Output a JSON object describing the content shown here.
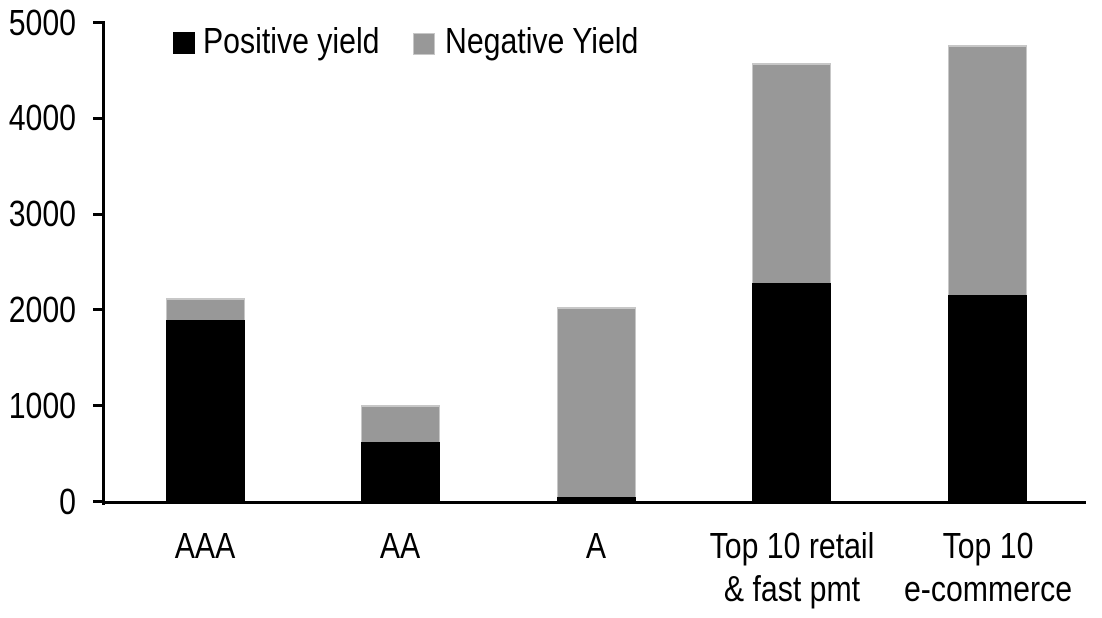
{
  "chart_data": {
    "type": "bar",
    "stacked": true,
    "title": "",
    "xlabel": "",
    "ylabel": "",
    "categories": [
      "AAA",
      "AA",
      "A",
      "Top 10 retail & fast pmt",
      "Top 10 e-commerce"
    ],
    "category_label_lines": [
      [
        "AAA"
      ],
      [
        "AA"
      ],
      [
        "A"
      ],
      [
        "Top 10 retail",
        "& fast pmt"
      ],
      [
        "Top 10",
        "e-commerce"
      ]
    ],
    "series": [
      {
        "name": "Positive yield",
        "color": "#000000",
        "values": [
          1890,
          620,
          40,
          2280,
          2150
        ]
      },
      {
        "name": "Negative Yield",
        "color": "#989898",
        "values": [
          230,
          380,
          1990,
          2290,
          2610
        ]
      }
    ],
    "stack_totals": [
      2120,
      1000,
      2030,
      4570,
      4760
    ],
    "ylim": [
      0,
      5000
    ],
    "yticks": [
      0,
      1000,
      2000,
      3000,
      4000,
      5000
    ],
    "grid": false,
    "legend_position": "top-center"
  },
  "colors": {
    "axis": "#000000",
    "background": "#ffffff",
    "positive_fill": "#000000",
    "negative_fill": "#989898",
    "negative_border": "#c7c7c7"
  }
}
